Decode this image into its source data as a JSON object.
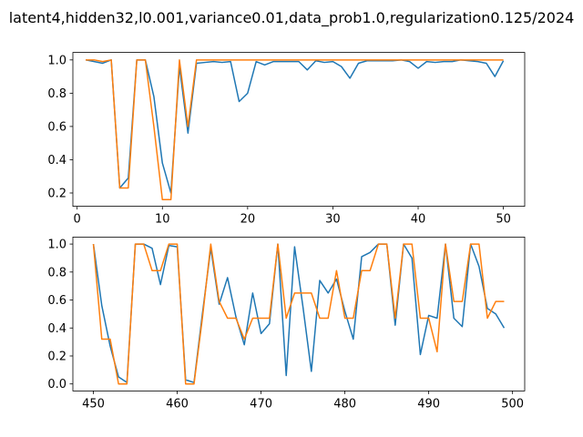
{
  "chart_data": {
    "title": "latent4,hidden32,l0.001,variance0.01,data_prob1.0,regularization0.125/2024",
    "colors": {
      "series_0": "#1f77b4",
      "series_1": "#ff7f0e"
    },
    "panels": [
      {
        "type": "line",
        "xlim": [
          -0.5,
          52.5
        ],
        "ylim": [
          0.12,
          1.045
        ],
        "xticks": [
          0,
          10,
          20,
          30,
          40,
          50
        ],
        "yticks": [
          0.2,
          0.4,
          0.6,
          0.8,
          1.0
        ],
        "ytick_labels": [
          "0.2",
          "0.4",
          "0.6",
          "0.8",
          "1.0"
        ],
        "x": [
          1,
          2,
          3,
          4,
          5,
          6,
          7,
          8,
          9,
          10,
          11,
          12,
          13,
          14,
          15,
          16,
          17,
          18,
          19,
          20,
          21,
          22,
          23,
          24,
          25,
          26,
          27,
          28,
          29,
          30,
          31,
          32,
          33,
          34,
          35,
          36,
          37,
          38,
          39,
          40,
          41,
          42,
          43,
          44,
          45,
          46,
          47,
          48,
          49,
          50
        ],
        "series": [
          {
            "values": [
              1.0,
              0.99,
              0.98,
              1.0,
              0.23,
              0.29,
              1.0,
              1.0,
              0.78,
              0.38,
              0.2,
              0.96,
              0.56,
              0.98,
              0.985,
              0.99,
              0.985,
              0.99,
              0.75,
              0.8,
              0.99,
              0.97,
              0.99,
              0.99,
              0.99,
              0.99,
              0.94,
              0.995,
              0.985,
              0.99,
              0.96,
              0.89,
              0.98,
              0.995,
              0.995,
              0.995,
              0.995,
              1.0,
              0.99,
              0.95,
              0.99,
              0.985,
              0.99,
              0.99,
              1.0,
              0.995,
              0.99,
              0.98,
              0.9,
              0.995
            ]
          },
          {
            "values": [
              1.0,
              1.0,
              0.99,
              1.0,
              0.23,
              0.23,
              1.0,
              1.0,
              0.6,
              0.16,
              0.16,
              1.0,
              0.6,
              1.0,
              1.0,
              1.0,
              1.0,
              1.0,
              1.0,
              1.0,
              1.0,
              1.0,
              1.0,
              1.0,
              1.0,
              1.0,
              1.0,
              1.0,
              1.0,
              1.0,
              1.0,
              1.0,
              1.0,
              1.0,
              1.0,
              1.0,
              1.0,
              1.0,
              1.0,
              1.0,
              1.0,
              1.0,
              1.0,
              1.0,
              1.0,
              1.0,
              1.0,
              1.0,
              1.0,
              1.0
            ]
          }
        ]
      },
      {
        "type": "line",
        "xlim": [
          447.55,
          501.45
        ],
        "ylim": [
          -0.05,
          1.05
        ],
        "xticks": [
          450,
          460,
          470,
          480,
          490,
          500
        ],
        "yticks": [
          0.0,
          0.2,
          0.4,
          0.6,
          0.8,
          1.0
        ],
        "ytick_labels": [
          "0.0",
          "0.2",
          "0.4",
          "0.6",
          "0.8",
          "1.0"
        ],
        "x": [
          450,
          451,
          452,
          453,
          454,
          455,
          456,
          457,
          458,
          459,
          460,
          461,
          462,
          463,
          464,
          465,
          466,
          467,
          468,
          469,
          470,
          471,
          472,
          473,
          474,
          475,
          476,
          477,
          478,
          479,
          480,
          481,
          482,
          483,
          484,
          485,
          486,
          487,
          488,
          489,
          490,
          491,
          492,
          493,
          494,
          495,
          496,
          497,
          498,
          499
        ],
        "series": [
          {
            "values": [
              1.0,
              0.56,
              0.27,
              0.05,
              0.01,
              1.0,
              1.0,
              0.97,
              0.71,
              0.99,
              0.98,
              0.03,
              0.01,
              0.5,
              0.97,
              0.57,
              0.76,
              0.48,
              0.28,
              0.65,
              0.36,
              0.43,
              1.0,
              0.06,
              0.98,
              0.55,
              0.09,
              0.74,
              0.65,
              0.75,
              0.52,
              0.32,
              0.91,
              0.94,
              1.0,
              1.0,
              0.42,
              1.0,
              0.9,
              0.21,
              0.49,
              0.47,
              1.0,
              0.47,
              0.41,
              1.0,
              0.84,
              0.54,
              0.5,
              0.4
            ]
          },
          {
            "values": [
              1.0,
              0.32,
              0.32,
              0.0,
              0.0,
              1.0,
              1.0,
              0.81,
              0.81,
              1.0,
              1.0,
              0.0,
              0.0,
              0.47,
              1.0,
              0.59,
              0.47,
              0.47,
              0.32,
              0.47,
              0.47,
              0.47,
              1.0,
              0.47,
              0.65,
              0.65,
              0.65,
              0.47,
              0.47,
              0.81,
              0.47,
              0.47,
              0.81,
              0.81,
              1.0,
              1.0,
              0.47,
              1.0,
              1.0,
              0.47,
              0.47,
              0.23,
              1.0,
              0.59,
              0.59,
              1.0,
              1.0,
              0.47,
              0.59,
              0.59
            ]
          }
        ]
      }
    ]
  }
}
